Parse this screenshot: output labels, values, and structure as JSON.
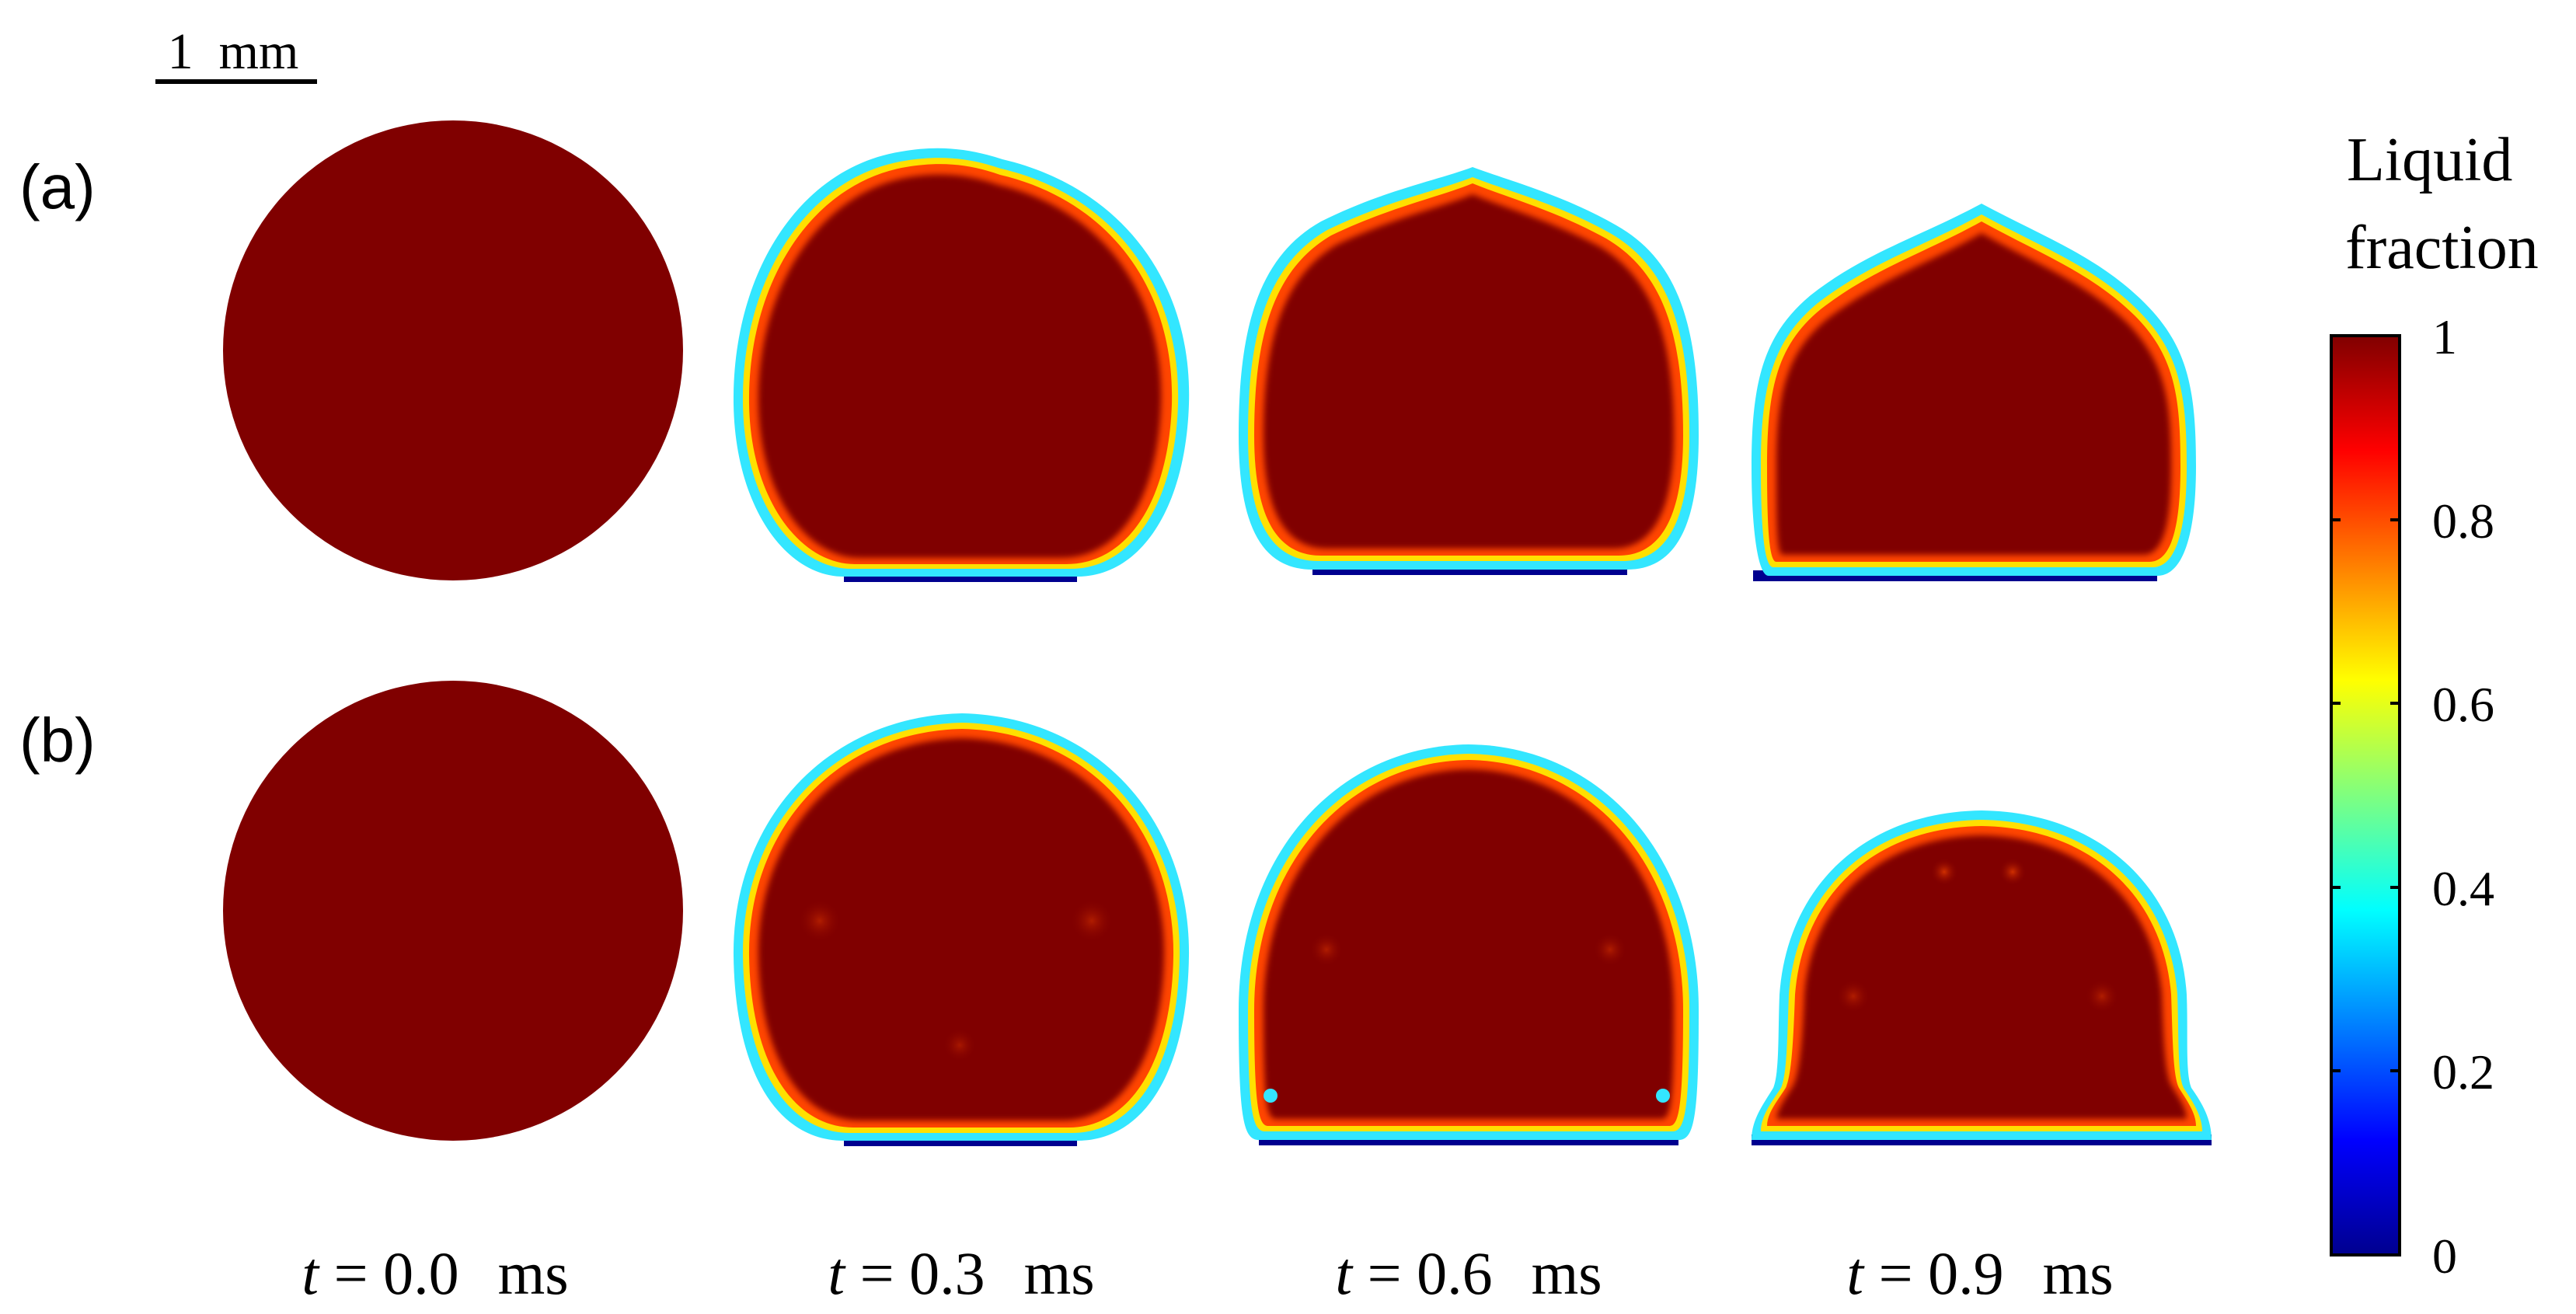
{
  "scale_bar": {
    "label": "1  mm"
  },
  "rows": [
    {
      "label": "(a)"
    },
    {
      "label": "(b)"
    }
  ],
  "times": [
    {
      "var": "t",
      "eq": " = ",
      "value": "0.0",
      "unit": "ms"
    },
    {
      "var": "t",
      "eq": " = ",
      "value": "0.3",
      "unit": "ms"
    },
    {
      "var": "t",
      "eq": " = ",
      "value": "0.6",
      "unit": "ms"
    },
    {
      "var": "t",
      "eq": " = ",
      "value": "0.9",
      "unit": "ms"
    }
  ],
  "colorbar": {
    "title_line1": "Liquid",
    "title_line2": "fraction",
    "ticks": [
      "1",
      "0.8",
      "0.6",
      "0.4",
      "0.2",
      "0"
    ],
    "colormap": "jet",
    "min": 0,
    "max": 1
  },
  "colors": {
    "liquid": "#800000",
    "substrate": "#00008f",
    "edge_cyan": "#33e6ff",
    "edge_yellow": "#ffe000",
    "edge_orange": "#ff6a00"
  }
}
